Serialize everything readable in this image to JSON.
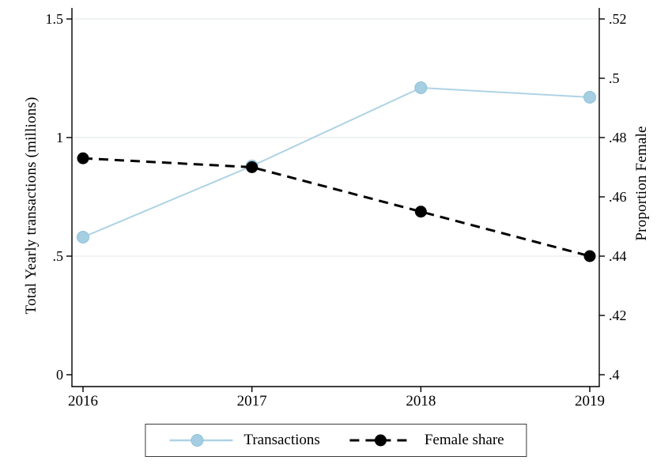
{
  "figure": {
    "background": "#ffffff",
    "axis_color": "#000000",
    "grid_color": "#ebeff1",
    "text_color": "#000000"
  },
  "chart_data": {
    "type": "line",
    "x_categories": [
      "2016",
      "2017",
      "2018",
      "2019"
    ],
    "series": [
      {
        "name": "Transactions",
        "axis": "left",
        "values": [
          0.58,
          0.88,
          1.21,
          1.17
        ],
        "color": "#aed3e4",
        "marker_fill": "#a5cee2",
        "marker_stroke": "#8fc0d6",
        "line_style": "solid",
        "marker": "circle"
      },
      {
        "name": "Female share",
        "axis": "right",
        "values": [
          0.473,
          0.47,
          0.455,
          0.44
        ],
        "color": "#000000",
        "marker_fill": "#000000",
        "marker_stroke": "#000000",
        "line_style": "dashed",
        "marker": "circle"
      }
    ],
    "left_axis": {
      "label": "Total Yearly transactions (millions)",
      "range": [
        0,
        1.5
      ],
      "ticks": [
        {
          "value": 0,
          "label": "0"
        },
        {
          "value": 0.5,
          "label": ".5"
        },
        {
          "value": 1,
          "label": "1"
        },
        {
          "value": 1.5,
          "label": "1.5"
        }
      ]
    },
    "right_axis": {
      "label": "Proportion Female",
      "range": [
        0.4,
        0.52
      ],
      "ticks": [
        {
          "value": 0.4,
          "label": ".4"
        },
        {
          "value": 0.42,
          "label": ".42"
        },
        {
          "value": 0.44,
          "label": ".44"
        },
        {
          "value": 0.46,
          "label": ".46"
        },
        {
          "value": 0.48,
          "label": ".48"
        },
        {
          "value": 0.5,
          "label": ".5"
        },
        {
          "value": 0.52,
          "label": ".52"
        }
      ]
    },
    "grid": true,
    "legend": {
      "position": "bottom",
      "entries": [
        "Transactions",
        "Female share"
      ]
    }
  }
}
